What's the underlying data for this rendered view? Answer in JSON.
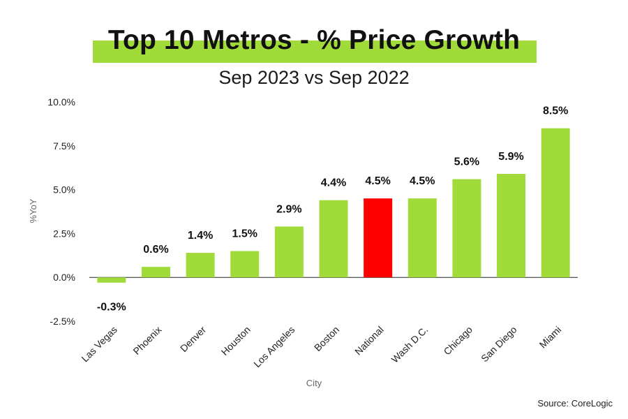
{
  "chart_data": {
    "type": "bar",
    "title": "Top 10 Metros - % Price Growth",
    "subtitle": "Sep 2023 vs Sep 2022",
    "xlabel": "City",
    "ylabel": "%YoY",
    "ylim": [
      -2.5,
      10.0
    ],
    "yticks": [
      "10.0%",
      "7.5%",
      "5.0%",
      "2.5%",
      "0.0%",
      "-2.5%"
    ],
    "ytick_values": [
      10.0,
      7.5,
      5.0,
      2.5,
      0.0,
      -2.5
    ],
    "categories": [
      "Las Vegas",
      "Phoenix",
      "Denver",
      "Houston",
      "Los Angeles",
      "Boston",
      "National",
      "Wash D.C.",
      "Chicago",
      "San Diego",
      "Miami"
    ],
    "values": [
      -0.3,
      0.6,
      1.4,
      1.5,
      2.9,
      4.4,
      4.5,
      4.5,
      5.6,
      5.9,
      8.5
    ],
    "value_labels": [
      "-0.3%",
      "0.6%",
      "1.4%",
      "1.5%",
      "2.9%",
      "4.4%",
      "4.5%",
      "4.5%",
      "5.6%",
      "5.9%",
      "8.5%"
    ],
    "colors": [
      "#a0db3a",
      "#a0db3a",
      "#a0db3a",
      "#a0db3a",
      "#a0db3a",
      "#a0db3a",
      "#ff0000",
      "#a0db3a",
      "#a0db3a",
      "#a0db3a",
      "#a0db3a"
    ],
    "grid": false,
    "source": "Source: CoreLogic"
  },
  "colors": {
    "title_band": "#a0db3a",
    "bar": "#a0db3a",
    "highlight": "#ff0000"
  }
}
